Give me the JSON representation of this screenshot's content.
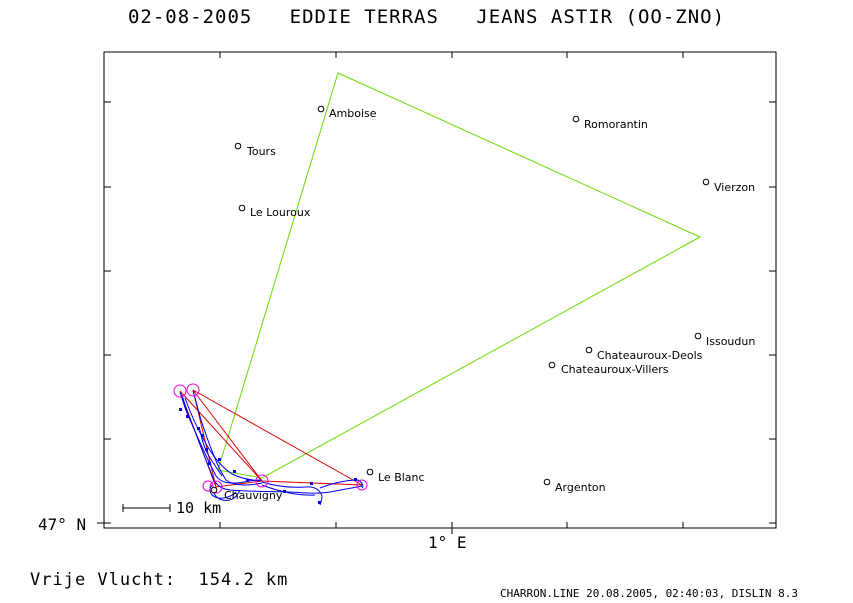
{
  "header": {
    "date": "02-08-2005",
    "pilot": "EDDIE TERRAS",
    "glider": "JEANS ASTIR (OO-ZNO)"
  },
  "axes": {
    "lat_label": "47° N",
    "lon_label": "1° E"
  },
  "scale": {
    "label": "10 km"
  },
  "footer": {
    "distance_text": "Vrije Vlucht:  154.2 km",
    "info_text": "CHARRON.LINE 20.08.2005, 02:40:03, DISLIN 8.3"
  },
  "towns": [
    {
      "name": "Amboise"
    },
    {
      "name": "Romorantin"
    },
    {
      "name": "Tours"
    },
    {
      "name": "Vierzon"
    },
    {
      "name": "Le Louroux"
    },
    {
      "name": "Issoudun"
    },
    {
      "name": "Chateauroux-Deols"
    },
    {
      "name": "Chateauroux-Villers"
    },
    {
      "name": "Le Blanc"
    },
    {
      "name": "Argenton"
    },
    {
      "name": "Chauvigny"
    }
  ],
  "colors": {
    "task_triangle": "#66dd00",
    "optimized_triangle": "#dd0000",
    "flight_track": "#0000ee",
    "turnpoint_marker": "#ee00ee"
  }
}
